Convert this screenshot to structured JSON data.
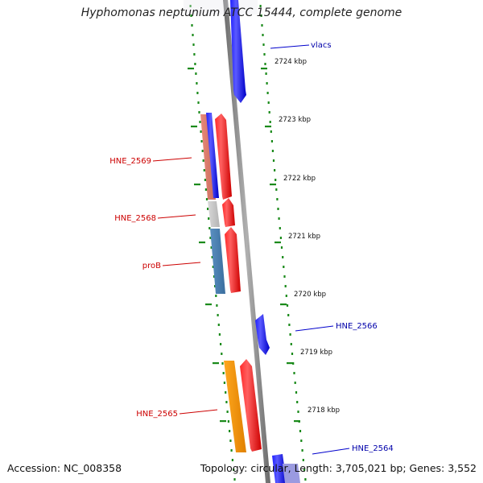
{
  "title": "Hyphomonas neptunium ATCC 15444, complete genome",
  "footer": {
    "accession": "Accession: NC_008358",
    "topology": "Topology: circular",
    "length": "Length: 3,705,021 bp",
    "genes": "Genes: 3,552"
  },
  "ticks": [
    {
      "label": "2724 kbp"
    },
    {
      "label": "2723 kbp"
    },
    {
      "label": "2722 kbp"
    },
    {
      "label": "2721 kbp"
    },
    {
      "label": "2720 kbp"
    },
    {
      "label": "2719 kbp"
    },
    {
      "label": "2718 kbp"
    }
  ],
  "gene_labels": [
    {
      "text": "vlacs",
      "strand": "plus"
    },
    {
      "text": "HNE_2569",
      "strand": "minus"
    },
    {
      "text": "HNE_2568",
      "strand": "minus"
    },
    {
      "text": "proB",
      "strand": "minus"
    },
    {
      "text": "HNE_2566",
      "strand": "plus"
    },
    {
      "text": "HNE_2565",
      "strand": "minus"
    },
    {
      "text": "HNE_2564",
      "strand": "plus"
    }
  ],
  "colors": {
    "plus_strand": "#0000ee",
    "minus_strand": "#ee0000",
    "backbone": "#8c8c8c",
    "ruler": "#1a8a1a",
    "label_plus": "#0000aa",
    "label_minus": "#cc0000"
  }
}
